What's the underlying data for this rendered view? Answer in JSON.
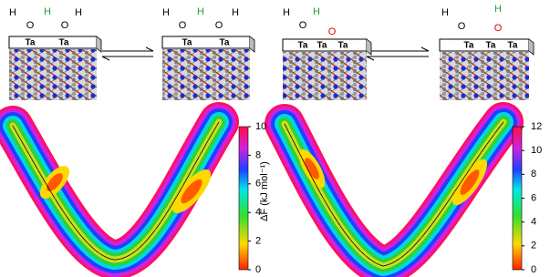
{
  "schemes": [
    {
      "labels": [
        "H",
        "O",
        "H",
        "O",
        "H",
        "Ta",
        "Ta"
      ]
    },
    {
      "labels": [
        "H",
        "O",
        "H",
        "O",
        "H",
        "Ta",
        "Ta"
      ]
    },
    {
      "labels": [
        "H",
        "O",
        "H",
        "O",
        "Ta",
        "Ta",
        "Ta"
      ]
    },
    {
      "labels": [
        "H",
        "O",
        "H",
        "O",
        "Ta",
        "Ta",
        "Ta"
      ]
    }
  ],
  "colorbars": [
    {
      "ylim": [
        0,
        10
      ],
      "yticks": [
        0,
        2,
        4,
        6,
        8,
        10
      ]
    },
    {
      "ylim": [
        0,
        12
      ],
      "yticks": [
        0,
        2,
        4,
        6,
        8,
        10,
        12
      ]
    }
  ],
  "colorbar_label": "ΔF (kJ mol⁻¹)"
}
